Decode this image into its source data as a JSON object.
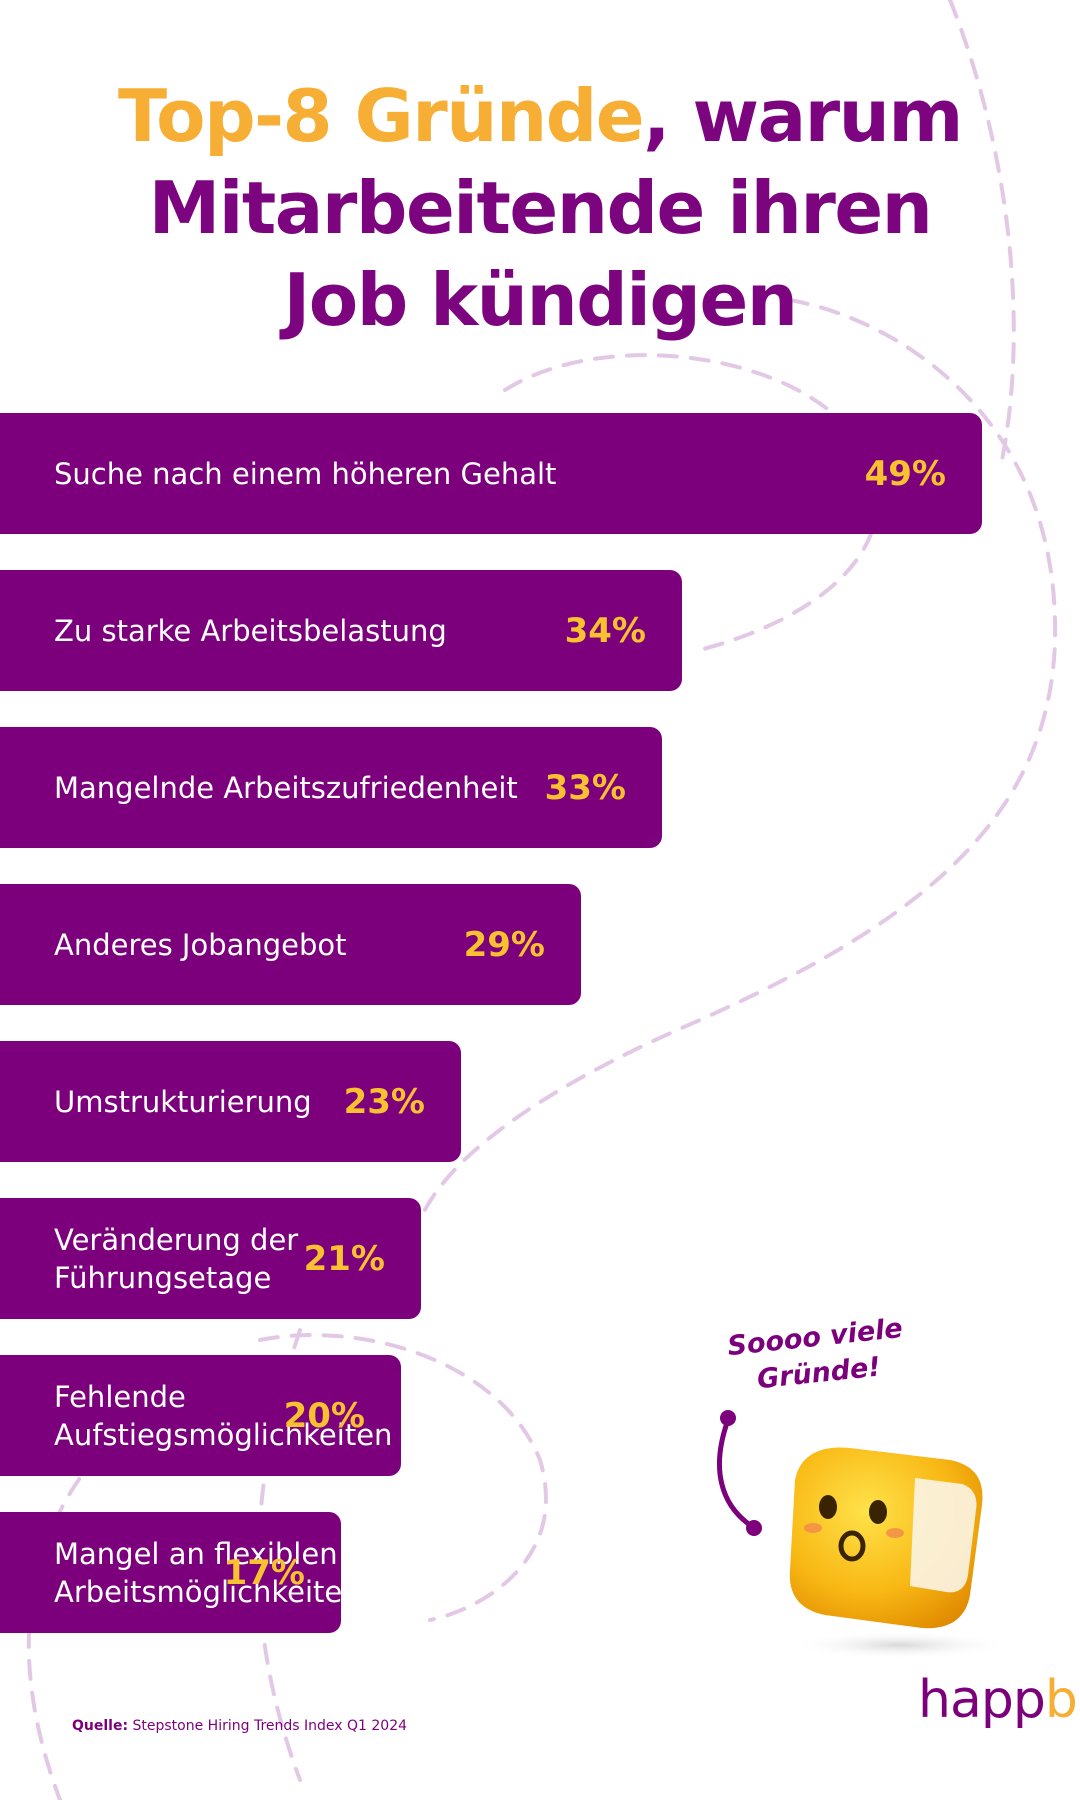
{
  "title": {
    "highlight": "Top-8 Gründe",
    "line1_rest": ", warum",
    "line2": "Mitarbeitende ihren",
    "line3": "Job kündigen"
  },
  "chart_data": {
    "type": "bar",
    "orientation": "horizontal",
    "categories": [
      "Suche nach einem höheren Gehalt",
      "Zu starke Arbeitsbelastung",
      "Mangelnde Arbeitszufriedenheit",
      "Anderes Jobangebot",
      "Umstrukturierung",
      "Veränderung der Führungsetage",
      "Fehlende Aufstiegsmöglichkeiten",
      "Mangel an flexiblen Arbeitsmöglichkeiten"
    ],
    "values": [
      49,
      34,
      33,
      29,
      23,
      21,
      20,
      17
    ],
    "value_labels": [
      "49%",
      "34%",
      "33%",
      "29%",
      "23%",
      "21%",
      "20%",
      "17%"
    ],
    "unit": "%",
    "bar_color": "#7c007c",
    "value_color": "#f8c12f"
  },
  "source": {
    "label": "Quelle:",
    "text": "Stepstone Hiring Trends Index Q1 2024"
  },
  "mascot": {
    "speech": "Soooo viele Gründe!",
    "icon": "cube-mascot-icon"
  },
  "logo": {
    "text_main": "happ",
    "text_accent": "b"
  },
  "colors": {
    "primary": "#7c007c",
    "accent": "#f6ae35",
    "value": "#f8c12f",
    "decor": "#e3c8e6"
  }
}
